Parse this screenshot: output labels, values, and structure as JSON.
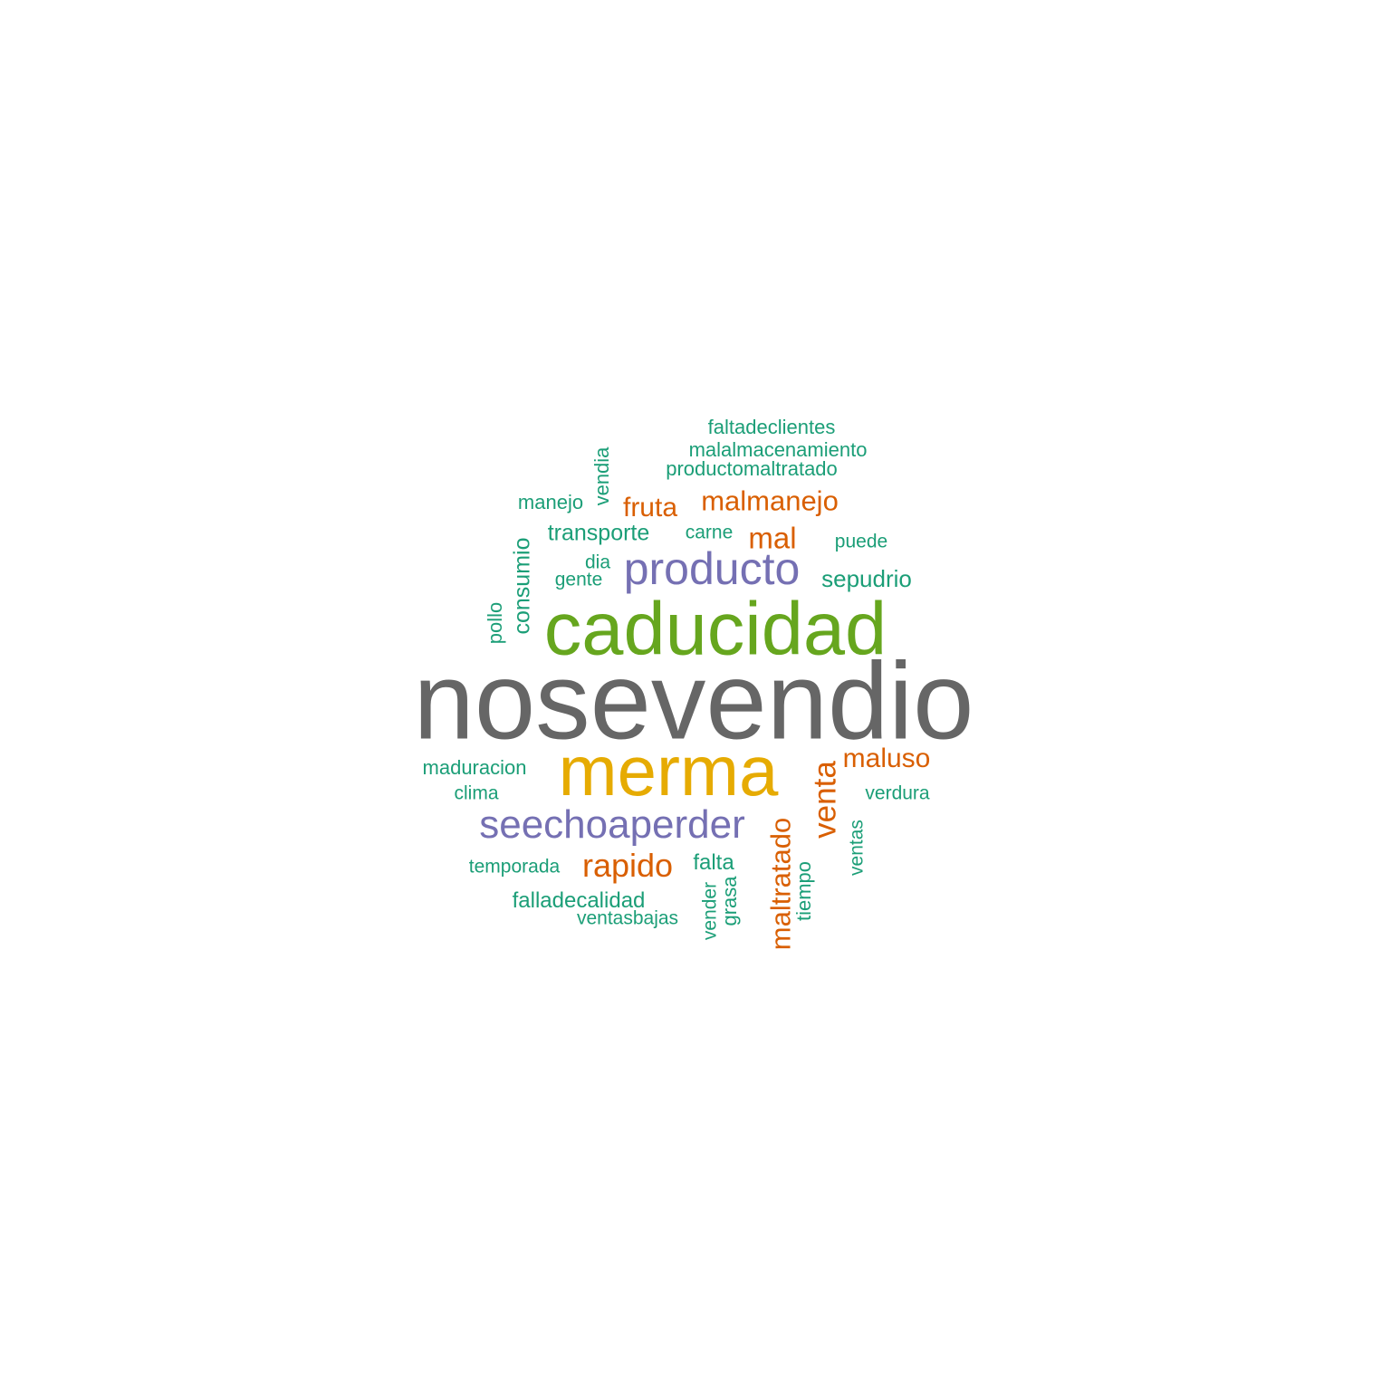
{
  "palette": {
    "gray": "#666666",
    "green": "#66a61e",
    "gold": "#e6ab02",
    "purple": "#7570b3",
    "orange": "#d95f02",
    "teal": "#1b9e77"
  },
  "words": [
    {
      "id": "nosevendio",
      "text": "nosevendio",
      "color": "#666666",
      "orientation": "horizontal"
    },
    {
      "id": "caducidad",
      "text": "caducidad",
      "color": "#66a61e",
      "orientation": "horizontal"
    },
    {
      "id": "merma",
      "text": "merma",
      "color": "#e6ab02",
      "orientation": "horizontal"
    },
    {
      "id": "producto",
      "text": "producto",
      "color": "#7570b3",
      "orientation": "horizontal"
    },
    {
      "id": "seechoaperder",
      "text": "seechoaperder",
      "color": "#7570b3",
      "orientation": "horizontal"
    },
    {
      "id": "malmanejo",
      "text": "malmanejo",
      "color": "#d95f02",
      "orientation": "horizontal"
    },
    {
      "id": "fruta",
      "text": "fruta",
      "color": "#d95f02",
      "orientation": "horizontal"
    },
    {
      "id": "mal",
      "text": "mal",
      "color": "#d95f02",
      "orientation": "horizontal"
    },
    {
      "id": "maluso",
      "text": "maluso",
      "color": "#d95f02",
      "orientation": "horizontal"
    },
    {
      "id": "venta",
      "text": "venta",
      "color": "#d95f02",
      "orientation": "vertical"
    },
    {
      "id": "rapido",
      "text": "rapido",
      "color": "#d95f02",
      "orientation": "horizontal"
    },
    {
      "id": "maltratado",
      "text": "maltratado",
      "color": "#d95f02",
      "orientation": "vertical"
    },
    {
      "id": "faltadeclientes",
      "text": "faltadeclientes",
      "color": "#1b9e77",
      "orientation": "horizontal"
    },
    {
      "id": "malalmacenamiento",
      "text": "malalmacenamiento",
      "color": "#1b9e77",
      "orientation": "horizontal"
    },
    {
      "id": "productomaltratado",
      "text": "productomaltratado",
      "color": "#1b9e77",
      "orientation": "horizontal"
    },
    {
      "id": "vendia",
      "text": "vendia",
      "color": "#1b9e77",
      "orientation": "vertical"
    },
    {
      "id": "manejo",
      "text": "manejo",
      "color": "#1b9e77",
      "orientation": "horizontal"
    },
    {
      "id": "transporte",
      "text": "transporte",
      "color": "#1b9e77",
      "orientation": "horizontal"
    },
    {
      "id": "carne",
      "text": "carne",
      "color": "#1b9e77",
      "orientation": "horizontal"
    },
    {
      "id": "puede",
      "text": "puede",
      "color": "#1b9e77",
      "orientation": "horizontal"
    },
    {
      "id": "dia",
      "text": "dia",
      "color": "#1b9e77",
      "orientation": "horizontal"
    },
    {
      "id": "gente",
      "text": "gente",
      "color": "#1b9e77",
      "orientation": "horizontal"
    },
    {
      "id": "sepudrio",
      "text": "sepudrio",
      "color": "#1b9e77",
      "orientation": "horizontal"
    },
    {
      "id": "consumio",
      "text": "consumio",
      "color": "#1b9e77",
      "orientation": "vertical"
    },
    {
      "id": "pollo",
      "text": "pollo",
      "color": "#1b9e77",
      "orientation": "vertical"
    },
    {
      "id": "maduracion",
      "text": "maduracion",
      "color": "#1b9e77",
      "orientation": "horizontal"
    },
    {
      "id": "clima",
      "text": "clima",
      "color": "#1b9e77",
      "orientation": "horizontal"
    },
    {
      "id": "verdura",
      "text": "verdura",
      "color": "#1b9e77",
      "orientation": "horizontal"
    },
    {
      "id": "ventas",
      "text": "ventas",
      "color": "#1b9e77",
      "orientation": "vertical"
    },
    {
      "id": "temporada",
      "text": "temporada",
      "color": "#1b9e77",
      "orientation": "horizontal"
    },
    {
      "id": "falta",
      "text": "falta",
      "color": "#1b9e77",
      "orientation": "horizontal"
    },
    {
      "id": "falladecalidad",
      "text": "falladecalidad",
      "color": "#1b9e77",
      "orientation": "horizontal"
    },
    {
      "id": "ventasbajas",
      "text": "ventasbajas",
      "color": "#1b9e77",
      "orientation": "horizontal"
    },
    {
      "id": "vender",
      "text": "vender",
      "color": "#1b9e77",
      "orientation": "vertical"
    },
    {
      "id": "grasa",
      "text": "grasa",
      "color": "#1b9e77",
      "orientation": "vertical"
    },
    {
      "id": "tiempo",
      "text": "tiempo",
      "color": "#1b9e77",
      "orientation": "vertical"
    }
  ]
}
